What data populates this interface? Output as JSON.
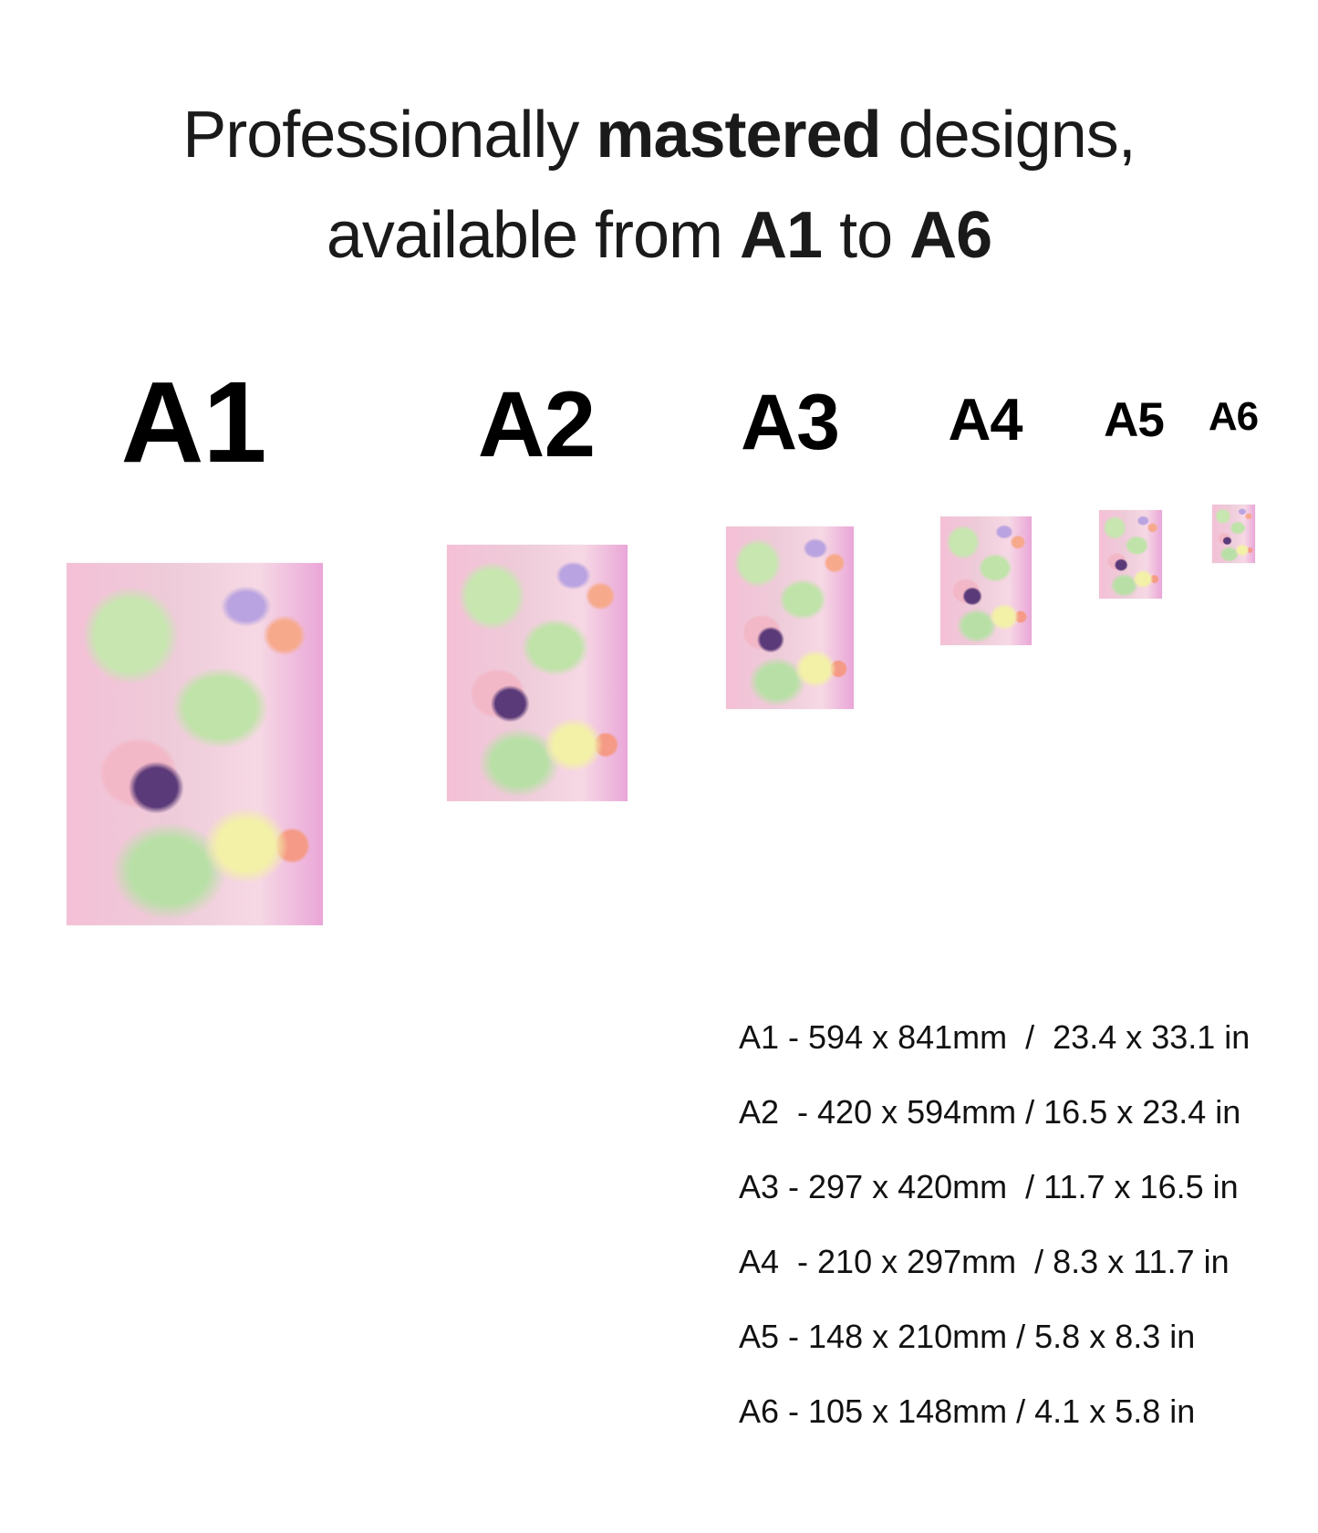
{
  "heading": {
    "line1_pre": "Professionally ",
    "line1_bold": "mastered",
    "line1_post": " designs,",
    "line2_pre": "available from ",
    "line2_bold1": "A1",
    "line2_mid": " to ",
    "line2_bold2": "A6"
  },
  "sizes": [
    {
      "label": "A1",
      "spec": "A1 - 594 x 841mm  /  23.4 x 33.1 in"
    },
    {
      "label": "A2",
      "spec": "A2  - 420 x 594mm / 16.5 x 23.4 in"
    },
    {
      "label": "A3",
      "spec": "A3 - 297 x 420mm  / 11.7 x 16.5 in"
    },
    {
      "label": "A4",
      "spec": "A4  - 210 x 297mm  / 8.3 x 11.7 in"
    },
    {
      "label": "A5",
      "spec": "A5 - 148 x 210mm / 5.8 x 8.3 in"
    },
    {
      "label": "A6",
      "spec": "A6 - 105 x 148mm / 4.1 x 5.8 in"
    }
  ],
  "colors": {
    "text": "#111111",
    "poster_pink": "#f4c0d6",
    "poster_green": "#c7e6b0"
  }
}
